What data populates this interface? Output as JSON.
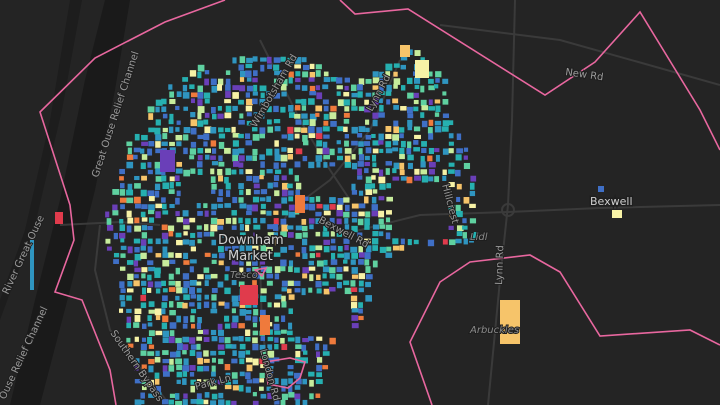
{
  "map": {
    "places": {
      "downham_line1": "Downham",
      "downham_line2": "Market",
      "bexwell": "Bexwell"
    },
    "roads": {
      "new_rd": "New Rd",
      "lynn_rd_north": "Lynn Rd",
      "lynn_rd_south": "Lynn Rd",
      "wimbotsham_rd": "Wimbotsham Rd",
      "bexwell_rd": "Bexwell Rd",
      "hillcrest": "Hillcrest",
      "london_rd": "London Rd",
      "park_ln": "Park Ln",
      "southern_bypass": "Southern Bypass"
    },
    "water": {
      "relief_channel_north": "Great Ouse Relief Channel",
      "river": "River Great Ouse",
      "relief_channel_south": "Ouse Relief Channel"
    },
    "pois": {
      "tesco": "Tesco",
      "lidl": "Lidl",
      "arbuckles": "Arbuckles"
    },
    "colors": {
      "background": "#242424",
      "road": "#3a3a3a",
      "water": "#1b1b1b",
      "boundary": "#e8679f",
      "palette": [
        "#6a3fb8",
        "#3f6fc6",
        "#2f95c0",
        "#26b0b0",
        "#5fd1a0",
        "#c7ec9c",
        "#f7f2a6",
        "#f6c46a",
        "#ef7a3c",
        "#e03b4c"
      ]
    }
  }
}
